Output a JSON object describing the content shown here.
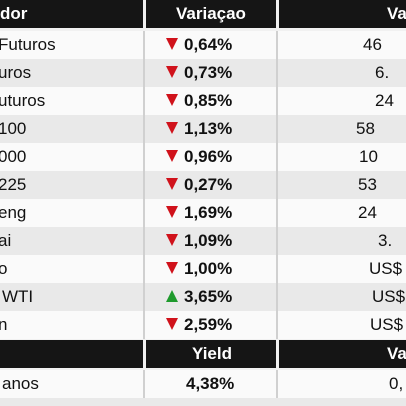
{
  "header": {
    "col1": "dor",
    "col2": "Variaçao",
    "col3": "Va"
  },
  "rows": [
    {
      "name": "Futuros",
      "dir": "down",
      "change": "0,64%",
      "value": "46"
    },
    {
      "name": "uros",
      "dir": "down",
      "change": "0,73%",
      "value": "6."
    },
    {
      "name": "uturos",
      "dir": "down",
      "change": "0,85%",
      "value": "24"
    },
    {
      "name": "100",
      "dir": "down",
      "change": "1,13%",
      "value": "58"
    },
    {
      "name": "000",
      "dir": "down",
      "change": "0,96%",
      "value": "10"
    },
    {
      "name": "225",
      "dir": "down",
      "change": "0,27%",
      "value": "53"
    },
    {
      "name": "eng",
      "dir": "down",
      "change": "1,69%",
      "value": "24"
    },
    {
      "name": "ai",
      "dir": "down",
      "change": "1,09%",
      "value": "3."
    },
    {
      "name": "o",
      "dir": "down",
      "change": "1,00%",
      "value": "US$"
    },
    {
      "name": "WTI",
      "dir": "up",
      "change": "3,65%",
      "value": "US$"
    },
    {
      "name": "n",
      "dir": "down",
      "change": "2,59%",
      "value": "US$"
    }
  ],
  "header2": {
    "col2": "Yield",
    "col3": "Va"
  },
  "rows2": [
    {
      "name": "anos",
      "change": "4,38%",
      "value": "0,"
    }
  ],
  "colors": {
    "down": "#d0121b",
    "up": "#1f9a2d",
    "header_bg": "#151515"
  }
}
